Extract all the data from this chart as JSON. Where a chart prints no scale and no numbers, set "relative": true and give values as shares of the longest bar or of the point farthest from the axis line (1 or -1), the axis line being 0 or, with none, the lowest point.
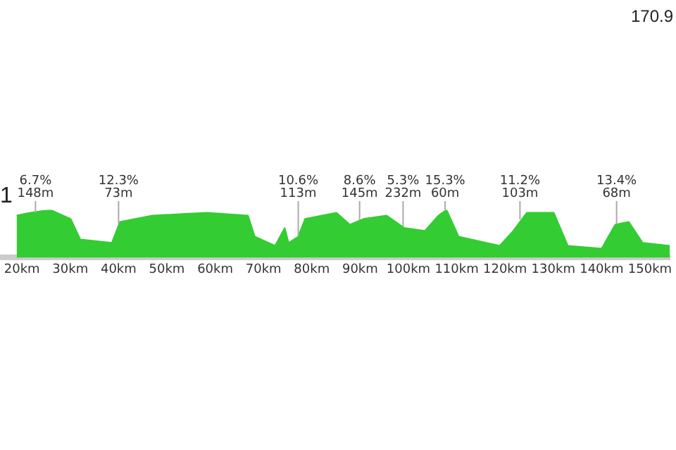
{
  "chart_data": {
    "type": "area",
    "title": "1",
    "relative": true,
    "color": "#33cc33",
    "grid": false,
    "legend": false,
    "x": [
      18.9,
      21.7,
      25.9,
      30.1,
      32.1,
      38.6,
      40.3,
      47.0,
      58.3,
      66.8,
      68.2,
      72.4,
      74.4,
      75.2,
      77.2,
      78.6,
      85.1,
      87.9,
      90.7,
      95.5,
      99.2,
      103.4,
      106.2,
      107.9,
      110.4,
      118.9,
      121.7,
      124.5,
      130.1,
      133.0,
      140.0,
      142.8,
      145.6,
      148.5,
      154.1
    ],
    "values": [
      0.88,
      0.94,
      1,
      0.81,
      0.38,
      0.31,
      0.75,
      0.88,
      0.94,
      0.88,
      0.44,
      0.25,
      0.62,
      0.31,
      0.44,
      0.81,
      0.94,
      0.69,
      0.81,
      0.88,
      0.62,
      0.56,
      0.88,
      1,
      0.44,
      0.25,
      0.56,
      0.94,
      0.94,
      0.25,
      0.19,
      0.69,
      0.75,
      0.31,
      0.25
    ],
    "xlim": [
      16,
      154.1
    ],
    "xticks": [
      {
        "value": 20,
        "label": "20km"
      },
      {
        "value": 30,
        "label": "30km"
      },
      {
        "value": 40,
        "label": "40km"
      },
      {
        "value": 50,
        "label": "50km"
      },
      {
        "value": 60,
        "label": "60km"
      },
      {
        "value": 70,
        "label": "70km"
      },
      {
        "value": 80,
        "label": "80km"
      },
      {
        "value": 90,
        "label": "90km"
      },
      {
        "value": 100,
        "label": "100km"
      },
      {
        "value": 110,
        "label": "110km"
      },
      {
        "value": 120,
        "label": "120km"
      },
      {
        "value": 130,
        "label": "130km"
      },
      {
        "value": 140,
        "label": "140km"
      },
      {
        "value": 150,
        "label": "150km"
      }
    ],
    "annotations": [
      "170.9",
      {
        "text": "6.7%\n148m",
        "x": 22.8,
        "y": 0.94
      },
      {
        "text": "12.3%\n73m",
        "x": 40,
        "y": 0.7
      },
      {
        "text": "10.6%\n113m",
        "x": 77.2,
        "y": 0.44
      },
      {
        "text": "8.6%\n145m",
        "x": 89.9,
        "y": 0.78
      },
      {
        "text": "5.3%\n232m",
        "x": 98.9,
        "y": 0.65
      },
      {
        "text": "15.3%\n60m",
        "x": 107.6,
        "y": 1
      },
      {
        "text": "11.2%\n103m",
        "x": 123.1,
        "y": 0.8
      },
      {
        "text": "13.4%\n68m",
        "x": 143.1,
        "y": 0.7
      }
    ]
  }
}
